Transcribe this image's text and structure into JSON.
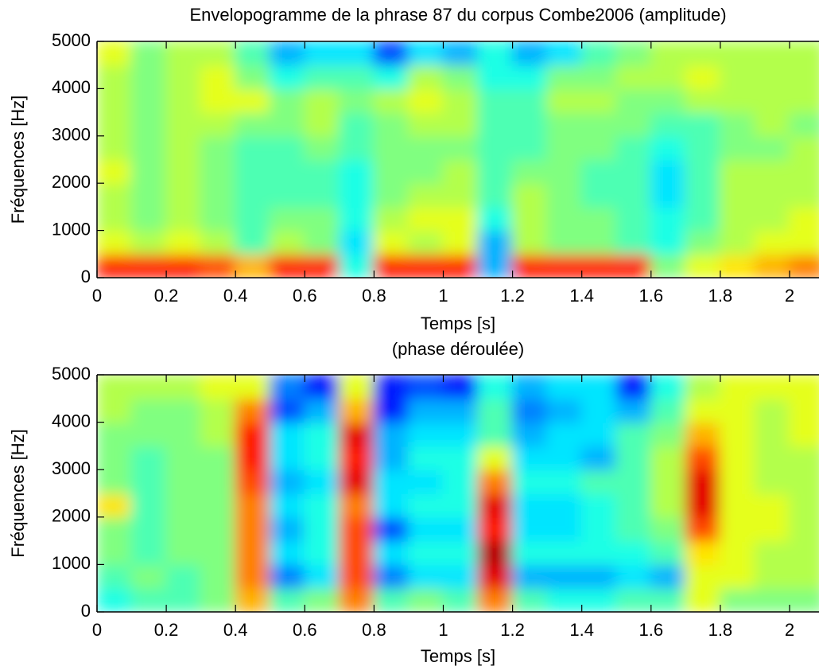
{
  "chart_data": [
    {
      "type": "heatmap",
      "title": "Envelopogramme de la phrase 87 du corpus Combe2006 (amplitude)",
      "xlabel": "Temps [s]",
      "ylabel": "Fréquences [Hz]",
      "xlim": [
        0,
        2.085
      ],
      "ylim": [
        0,
        5000
      ],
      "xticks": [
        0,
        0.2,
        0.4,
        0.6,
        0.8,
        1,
        1.2,
        1.4,
        1.6,
        1.8,
        2
      ],
      "yticks": [
        0,
        1000,
        2000,
        3000,
        4000,
        5000
      ],
      "colormap": "jet",
      "clim": [
        0,
        1
      ],
      "xbins": [
        0,
        0.1,
        0.2,
        0.3,
        0.4,
        0.5,
        0.6,
        0.7,
        0.8,
        0.9,
        1,
        1.1,
        1.2,
        1.3,
        1.4,
        1.5,
        1.6,
        1.7,
        1.8,
        1.9,
        2,
        2.1
      ],
      "ybins": [
        0,
        500,
        1000,
        1500,
        2000,
        2500,
        3000,
        3500,
        4000,
        4500,
        5000
      ],
      "z": [
        [
          0.85,
          0.85,
          0.85,
          0.8,
          0.7,
          0.85,
          0.85,
          0.4,
          0.85,
          0.85,
          0.85,
          0.3,
          0.85,
          0.85,
          0.85,
          0.85,
          0.5,
          0.6,
          0.65,
          0.7,
          0.75
        ],
        [
          0.6,
          0.55,
          0.6,
          0.55,
          0.45,
          0.55,
          0.5,
          0.35,
          0.6,
          0.55,
          0.6,
          0.3,
          0.55,
          0.5,
          0.5,
          0.45,
          0.4,
          0.5,
          0.55,
          0.6,
          0.6
        ],
        [
          0.55,
          0.5,
          0.55,
          0.5,
          0.45,
          0.5,
          0.5,
          0.4,
          0.55,
          0.6,
          0.6,
          0.4,
          0.55,
          0.5,
          0.5,
          0.45,
          0.4,
          0.45,
          0.55,
          0.55,
          0.6
        ],
        [
          0.55,
          0.5,
          0.55,
          0.5,
          0.45,
          0.45,
          0.45,
          0.4,
          0.5,
          0.55,
          0.55,
          0.45,
          0.55,
          0.5,
          0.45,
          0.45,
          0.35,
          0.45,
          0.55,
          0.55,
          0.55
        ],
        [
          0.6,
          0.5,
          0.55,
          0.5,
          0.45,
          0.45,
          0.45,
          0.4,
          0.5,
          0.5,
          0.55,
          0.45,
          0.5,
          0.5,
          0.45,
          0.45,
          0.35,
          0.45,
          0.55,
          0.55,
          0.55
        ],
        [
          0.55,
          0.5,
          0.55,
          0.5,
          0.45,
          0.45,
          0.5,
          0.45,
          0.5,
          0.5,
          0.5,
          0.45,
          0.45,
          0.5,
          0.5,
          0.45,
          0.4,
          0.45,
          0.5,
          0.5,
          0.55
        ],
        [
          0.55,
          0.5,
          0.55,
          0.55,
          0.5,
          0.5,
          0.55,
          0.45,
          0.5,
          0.55,
          0.55,
          0.45,
          0.45,
          0.5,
          0.5,
          0.5,
          0.45,
          0.45,
          0.5,
          0.55,
          0.5
        ],
        [
          0.55,
          0.5,
          0.55,
          0.6,
          0.6,
          0.5,
          0.55,
          0.5,
          0.55,
          0.6,
          0.55,
          0.45,
          0.45,
          0.55,
          0.55,
          0.5,
          0.5,
          0.55,
          0.55,
          0.55,
          0.55
        ],
        [
          0.55,
          0.5,
          0.55,
          0.6,
          0.5,
          0.4,
          0.45,
          0.45,
          0.4,
          0.55,
          0.5,
          0.4,
          0.4,
          0.5,
          0.5,
          0.55,
          0.55,
          0.6,
          0.55,
          0.55,
          0.55
        ],
        [
          0.6,
          0.5,
          0.55,
          0.55,
          0.45,
          0.3,
          0.35,
          0.35,
          0.2,
          0.35,
          0.3,
          0.4,
          0.3,
          0.35,
          0.45,
          0.5,
          0.55,
          0.55,
          0.55,
          0.55,
          0.55
        ]
      ]
    },
    {
      "type": "heatmap",
      "title": "(phase déroulée)",
      "xlabel": "Temps [s]",
      "ylabel": "Fréquences [Hz]",
      "xlim": [
        0,
        2.085
      ],
      "ylim": [
        0,
        5000
      ],
      "xticks": [
        0,
        0.2,
        0.4,
        0.6,
        0.8,
        1,
        1.2,
        1.4,
        1.6,
        1.8,
        2
      ],
      "yticks": [
        0,
        1000,
        2000,
        3000,
        4000,
        5000
      ],
      "colormap": "jet",
      "clim": [
        0,
        1
      ],
      "xbins": [
        0,
        0.1,
        0.2,
        0.3,
        0.4,
        0.5,
        0.6,
        0.7,
        0.8,
        0.9,
        1,
        1.1,
        1.2,
        1.3,
        1.4,
        1.5,
        1.6,
        1.7,
        1.8,
        1.9,
        2,
        2.1
      ],
      "ybins": [
        0,
        500,
        1000,
        1500,
        2000,
        2500,
        3000,
        3500,
        4000,
        4500,
        5000
      ],
      "z": [
        [
          0.4,
          0.45,
          0.45,
          0.5,
          0.7,
          0.45,
          0.5,
          0.75,
          0.45,
          0.5,
          0.45,
          0.75,
          0.45,
          0.4,
          0.4,
          0.45,
          0.45,
          0.6,
          0.5,
          0.5,
          0.5
        ],
        [
          0.45,
          0.5,
          0.45,
          0.5,
          0.75,
          0.25,
          0.35,
          0.8,
          0.25,
          0.35,
          0.35,
          0.9,
          0.3,
          0.3,
          0.3,
          0.35,
          0.3,
          0.6,
          0.6,
          0.55,
          0.55
        ],
        [
          0.5,
          0.45,
          0.5,
          0.5,
          0.75,
          0.35,
          0.4,
          0.8,
          0.35,
          0.4,
          0.4,
          0.95,
          0.4,
          0.4,
          0.4,
          0.4,
          0.45,
          0.65,
          0.6,
          0.55,
          0.55
        ],
        [
          0.5,
          0.45,
          0.5,
          0.5,
          0.75,
          0.3,
          0.4,
          0.8,
          0.2,
          0.35,
          0.35,
          0.85,
          0.35,
          0.35,
          0.4,
          0.45,
          0.5,
          0.8,
          0.6,
          0.6,
          0.55
        ],
        [
          0.65,
          0.45,
          0.5,
          0.5,
          0.75,
          0.35,
          0.4,
          0.75,
          0.35,
          0.4,
          0.4,
          0.9,
          0.35,
          0.35,
          0.4,
          0.45,
          0.55,
          0.9,
          0.6,
          0.6,
          0.55
        ],
        [
          0.5,
          0.45,
          0.5,
          0.5,
          0.8,
          0.3,
          0.35,
          0.9,
          0.35,
          0.35,
          0.4,
          0.75,
          0.4,
          0.4,
          0.45,
          0.45,
          0.55,
          0.9,
          0.6,
          0.55,
          0.55
        ],
        [
          0.5,
          0.45,
          0.5,
          0.5,
          0.85,
          0.35,
          0.4,
          0.85,
          0.3,
          0.4,
          0.4,
          0.6,
          0.35,
          0.35,
          0.3,
          0.45,
          0.55,
          0.8,
          0.6,
          0.55,
          0.55
        ],
        [
          0.5,
          0.5,
          0.5,
          0.55,
          0.85,
          0.35,
          0.4,
          0.9,
          0.3,
          0.35,
          0.35,
          0.45,
          0.3,
          0.35,
          0.35,
          0.45,
          0.5,
          0.7,
          0.6,
          0.55,
          0.6
        ],
        [
          0.55,
          0.5,
          0.5,
          0.55,
          0.75,
          0.2,
          0.3,
          0.7,
          0.15,
          0.3,
          0.3,
          0.45,
          0.25,
          0.3,
          0.35,
          0.3,
          0.45,
          0.6,
          0.6,
          0.55,
          0.6
        ],
        [
          0.55,
          0.55,
          0.55,
          0.6,
          0.6,
          0.25,
          0.15,
          0.6,
          0.15,
          0.2,
          0.15,
          0.4,
          0.3,
          0.35,
          0.35,
          0.15,
          0.4,
          0.55,
          0.6,
          0.6,
          0.6
        ]
      ]
    }
  ]
}
